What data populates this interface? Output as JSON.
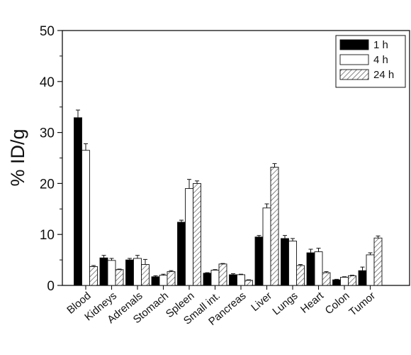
{
  "chart_data": {
    "type": "bar",
    "title": "",
    "xlabel": "",
    "ylabel": "% ID/g",
    "ylim": [
      0,
      50
    ],
    "yticks": [
      0,
      10,
      20,
      30,
      40,
      50
    ],
    "grid": false,
    "legend_position": "top-right",
    "categories": [
      "Blood",
      "Kidneys",
      "Adrenals",
      "Stomach",
      "Spleen",
      "Small int.",
      "Pancreas",
      "Liver",
      "Lungs",
      "Heart",
      "Colon",
      "Tumor"
    ],
    "series": [
      {
        "name": "1 h",
        "fill": "solid-black",
        "values": [
          32.9,
          5.4,
          5.0,
          1.7,
          12.4,
          2.4,
          2.1,
          9.5,
          9.2,
          6.4,
          1.1,
          2.9
        ],
        "errors": [
          1.5,
          0.5,
          0.3,
          0.2,
          0.4,
          0.1,
          0.2,
          0.3,
          0.6,
          0.7,
          0.1,
          0.7
        ]
      },
      {
        "name": "4 h",
        "fill": "white",
        "values": [
          26.5,
          4.9,
          5.3,
          2.0,
          19.0,
          3.0,
          2.1,
          15.2,
          8.7,
          6.6,
          1.6,
          6.0
        ],
        "errors": [
          1.3,
          0.4,
          0.6,
          0.2,
          1.8,
          0.1,
          0.1,
          0.8,
          0.5,
          0.7,
          0.1,
          0.4
        ]
      },
      {
        "name": "24 h",
        "fill": "hatched",
        "values": [
          3.7,
          3.1,
          4.1,
          2.7,
          20.0,
          4.2,
          1.0,
          23.2,
          3.9,
          2.5,
          1.9,
          9.3
        ],
        "errors": [
          0.2,
          0.1,
          1.0,
          0.2,
          0.5,
          0.1,
          0.1,
          0.7,
          0.2,
          0.2,
          0.1,
          0.4
        ]
      }
    ]
  }
}
